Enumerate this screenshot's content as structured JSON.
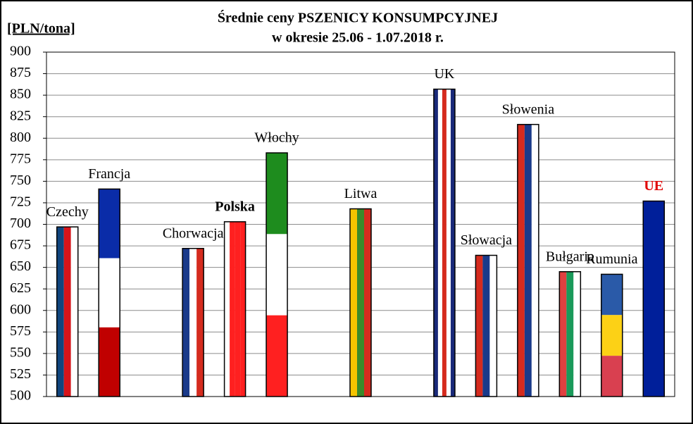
{
  "chart_data": {
    "type": "bar",
    "title": "Średnie ceny PSZENICY  KONSUMPCYJNEJ",
    "subtitle": "w okresie  25.06 - 1.07.2018 r.",
    "y_label": "[PLN/tona]",
    "categories": [
      "Czechy",
      "Francja",
      null,
      "Chorwacja",
      "Polska",
      "Włochy",
      null,
      "Litwa",
      null,
      "UK",
      "Słowacja",
      "Słowenia",
      "Bułgaria",
      "Rumunia",
      "UE"
    ],
    "values": [
      697,
      741,
      null,
      672,
      703,
      783,
      null,
      718,
      null,
      857,
      664,
      816,
      645,
      642,
      727
    ],
    "flags": [
      {
        "dir": "v",
        "colors": [
          "#11457e",
          "#d7141a",
          "#ffffff"
        ]
      },
      {
        "dir": "h",
        "colors": [
          "#0a2ca8",
          "#ffffff",
          "#c00000"
        ]
      },
      null,
      {
        "dir": "v",
        "colors": [
          "#1a3a8a",
          "#ffffff",
          "#d52b1e"
        ]
      },
      {
        "dir": "v",
        "colors": [
          "#ffffff",
          "#ff2020",
          "#ff2020",
          "#ff2020"
        ]
      },
      {
        "dir": "h",
        "colors": [
          "#1e8c1e",
          "#ffffff",
          "#ff2020"
        ]
      },
      null,
      {
        "dir": "v",
        "colors": [
          "#f5c400",
          "#3a8a2a",
          "#d52b1e"
        ]
      },
      null,
      {
        "dir": "v",
        "colors": [
          "#1a2a7a",
          "#ffffff",
          "#d52b1e",
          "#ffffff",
          "#1a2a7a"
        ]
      },
      {
        "dir": "v",
        "colors": [
          "#d52b1e",
          "#1a3a8a",
          "#ffffff"
        ]
      },
      {
        "dir": "v",
        "colors": [
          "#d52b1e",
          "#1a3a8a",
          "#ffffff"
        ]
      },
      {
        "dir": "v",
        "colors": [
          "#e04040",
          "#1a9a5a",
          "#ffffff"
        ]
      },
      {
        "dir": "h",
        "colors": [
          "#2a5aa8",
          "#fcd116",
          "#d94050"
        ]
      },
      {
        "dir": "v",
        "colors": [
          "#001f9a"
        ]
      }
    ],
    "ylim": [
      500,
      900
    ],
    "yticks": [
      500,
      525,
      550,
      575,
      600,
      625,
      650,
      675,
      700,
      725,
      750,
      775,
      800,
      825,
      850,
      875,
      900
    ],
    "grid": true
  }
}
